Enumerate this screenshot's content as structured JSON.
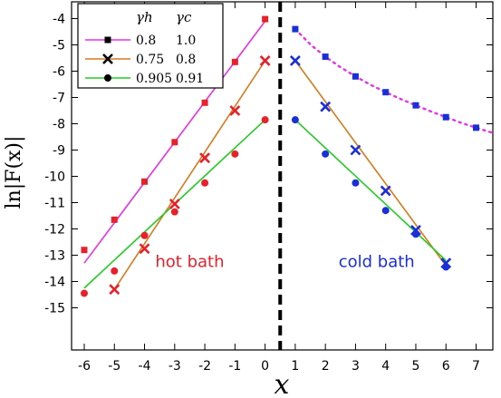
{
  "chart_data": {
    "type": "line",
    "xlabel": "x",
    "ylabel": "ln|F(x)|",
    "xlim": [
      -6.5,
      7.5
    ],
    "ylim": [
      -15.5,
      -3.5
    ],
    "x_ticks": [
      "-6",
      "-5",
      "-4",
      "-3",
      "-2",
      "-1",
      "0",
      "1",
      "2",
      "3",
      "4",
      "5",
      "6",
      "7"
    ],
    "y_ticks": [
      "-4",
      "-5",
      "-6",
      "-7",
      "-8",
      "-9",
      "-10",
      "-11",
      "-12",
      "-13",
      "-14",
      "-15"
    ],
    "divider_x": 0.5,
    "legend": {
      "placement": "top-left",
      "col1_header": "γh",
      "col2_header": "γc"
    },
    "annotations": [
      {
        "text": "hot bath",
        "color": "#e8202a",
        "x": -2.5,
        "y": -13.45
      },
      {
        "text": "cold bath",
        "color": "#1a2fd8",
        "x": 3.7,
        "y": -13.45
      }
    ],
    "series": [
      {
        "name": "0.8",
        "name2": "1.0",
        "color": "#e830e8",
        "marker_color": "#e8202a",
        "legend_marker": "square",
        "hot_marker": "square",
        "cold_marker": "square",
        "cold_marker_color": "#1a2fd8",
        "hot_points": [
          [
            -6,
            -12.8
          ],
          [
            -5,
            -11.65
          ],
          [
            -4,
            -10.2
          ],
          [
            -3,
            -8.7
          ],
          [
            -2,
            -7.2
          ],
          [
            -1,
            -5.65
          ],
          [
            0,
            -4.02
          ]
        ],
        "hot_fit": [
          [
            -6,
            -13.3
          ],
          [
            0,
            -4.1
          ]
        ],
        "cold_points": [
          [
            1,
            -4.4
          ],
          [
            2,
            -5.45
          ],
          [
            3,
            -6.2
          ],
          [
            4,
            -6.8
          ],
          [
            5,
            -7.3
          ],
          [
            6,
            -7.75
          ],
          [
            7,
            -8.15
          ]
        ],
        "cold_fit": [
          [
            1,
            -4.4
          ],
          [
            1.5,
            -4.98
          ],
          [
            2,
            -5.45
          ],
          [
            2.5,
            -5.85
          ],
          [
            3,
            -6.2
          ],
          [
            3.5,
            -6.52
          ],
          [
            4,
            -6.8
          ],
          [
            4.5,
            -7.06
          ],
          [
            5,
            -7.3
          ],
          [
            5.5,
            -7.53
          ],
          [
            6,
            -7.75
          ],
          [
            6.5,
            -7.96
          ],
          [
            7,
            -8.15
          ],
          [
            7.5,
            -8.33
          ]
        ],
        "cold_fit_style": "dotted"
      },
      {
        "name": "0.75",
        "name2": "0.8",
        "color": "#d77a1c",
        "marker_color": "#e8202a",
        "legend_marker": "cross",
        "hot_marker": "cross",
        "cold_marker": "cross",
        "cold_marker_color": "#1a2fd8",
        "hot_points": [
          [
            -5,
            -14.3
          ],
          [
            -4,
            -12.75
          ],
          [
            -3,
            -11.05
          ],
          [
            -2,
            -9.3
          ],
          [
            -1,
            -7.5
          ],
          [
            0,
            -5.6
          ]
        ],
        "hot_fit": [
          [
            -5,
            -14.3
          ],
          [
            0,
            -5.6
          ]
        ],
        "cold_points": [
          [
            1,
            -5.6
          ],
          [
            2,
            -7.35
          ],
          [
            3,
            -9.0
          ],
          [
            4,
            -10.55
          ],
          [
            5,
            -12.05
          ],
          [
            6,
            -13.3
          ]
        ],
        "cold_fit": [
          [
            1,
            -5.6
          ],
          [
            6,
            -13.4
          ]
        ],
        "cold_fit_style": "solid"
      },
      {
        "name": "0.905",
        "name2": "0.91",
        "color": "#22cc22",
        "marker_color": "#e8202a",
        "legend_marker": "circle",
        "hot_marker": "circle",
        "cold_marker": "circle",
        "cold_marker_color": "#1a2fd8",
        "hot_points": [
          [
            -6,
            -14.45
          ],
          [
            -5,
            -13.6
          ],
          [
            -4,
            -12.25
          ],
          [
            -3,
            -11.35
          ],
          [
            -2,
            -10.25
          ],
          [
            -1,
            -9.15
          ],
          [
            0,
            -7.85
          ]
        ],
        "hot_fit": [
          [
            -6,
            -14.25
          ],
          [
            0,
            -7.85
          ]
        ],
        "cold_points": [
          [
            1,
            -7.85
          ],
          [
            2,
            -9.15
          ],
          [
            3,
            -10.25
          ],
          [
            4,
            -11.3
          ],
          [
            5,
            -12.2
          ],
          [
            6,
            -13.45
          ]
        ],
        "cold_fit": [
          [
            1,
            -7.85
          ],
          [
            6,
            -13.2
          ]
        ],
        "cold_fit_style": "solid"
      }
    ]
  }
}
